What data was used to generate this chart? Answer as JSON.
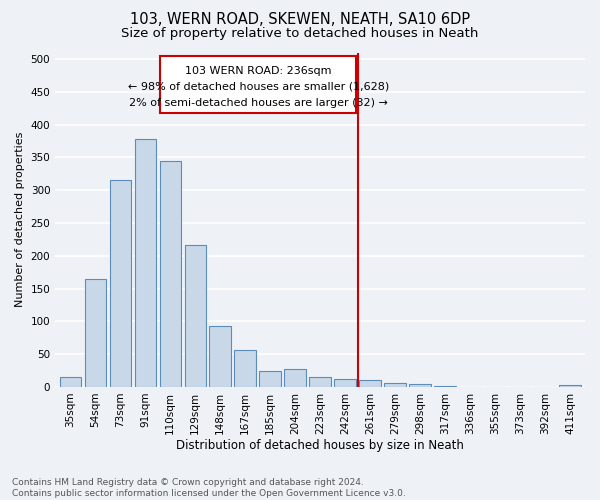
{
  "title1": "103, WERN ROAD, SKEWEN, NEATH, SA10 6DP",
  "title2": "Size of property relative to detached houses in Neath",
  "xlabel": "Distribution of detached houses by size in Neath",
  "ylabel": "Number of detached properties",
  "footnote": "Contains HM Land Registry data © Crown copyright and database right 2024.\nContains public sector information licensed under the Open Government Licence v3.0.",
  "categories": [
    "35sqm",
    "54sqm",
    "73sqm",
    "91sqm",
    "110sqm",
    "129sqm",
    "148sqm",
    "167sqm",
    "185sqm",
    "204sqm",
    "223sqm",
    "242sqm",
    "261sqm",
    "279sqm",
    "298sqm",
    "317sqm",
    "336sqm",
    "355sqm",
    "373sqm",
    "392sqm",
    "411sqm"
  ],
  "values": [
    15,
    165,
    315,
    378,
    344,
    216,
    93,
    57,
    25,
    27,
    15,
    12,
    10,
    6,
    5,
    2,
    0,
    0,
    0,
    0,
    3
  ],
  "bar_color": "#c8d8e8",
  "bar_edge_color": "#5b8db8",
  "vline_color": "#cc0000",
  "vline_index": 11,
  "annotation_title": "103 WERN ROAD: 236sqm",
  "annotation_line1": "← 98% of detached houses are smaller (1,628)",
  "annotation_line2": "2% of semi-detached houses are larger (32) →",
  "annotation_box_color": "#cc0000",
  "ylim": [
    0,
    510
  ],
  "yticks": [
    0,
    50,
    100,
    150,
    200,
    250,
    300,
    350,
    400,
    450,
    500
  ],
  "background_color": "#eef2f7",
  "grid_color": "#ffffff",
  "title1_fontsize": 10.5,
  "title2_fontsize": 9.5,
  "xlabel_fontsize": 8.5,
  "ylabel_fontsize": 8,
  "tick_fontsize": 7.5,
  "annotation_fontsize": 8,
  "footnote_fontsize": 6.5
}
